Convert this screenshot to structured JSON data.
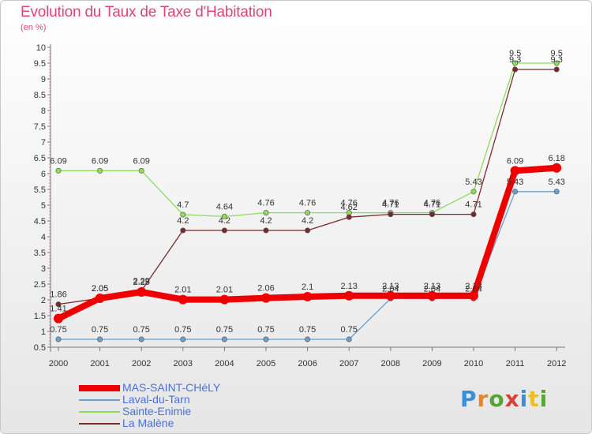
{
  "header": {
    "title": "Evolution du Taux de Taxe d'Habitation",
    "subtitle": "(en %)"
  },
  "logo": {
    "text": "Proxiti",
    "colors": [
      "#3a8fd8",
      "#e8832a",
      "#5aa33a",
      "#d8403a",
      "#3a8fd8",
      "#e8c12a",
      "#5aa33a"
    ]
  },
  "chart_data": {
    "type": "line",
    "title": "Evolution du Taux de Taxe d'Habitation",
    "subtitle": "(en %)",
    "xlabel": "",
    "ylabel": "",
    "x": [
      "2000",
      "2001",
      "2002",
      "2003",
      "2004",
      "2005",
      "2006",
      "2007",
      "2008",
      "2009",
      "2010",
      "2011",
      "2012"
    ],
    "ylim": [
      0.5,
      10
    ],
    "yticks": [
      "0.5",
      "1",
      "1.5",
      "2",
      "2.5",
      "3",
      "3.5",
      "4",
      "4.5",
      "5",
      "5.5",
      "6",
      "6.5",
      "7",
      "7.5",
      "8",
      "8.5",
      "9",
      "9.5",
      "10"
    ],
    "grid": false,
    "legend_position": "bottom-left",
    "series": [
      {
        "name": "MAS-SAINT-CHéLY",
        "color": "#ee0000",
        "emphasis": true,
        "values": [
          1.41,
          2.05,
          2.25,
          2.01,
          2.01,
          2.06,
          2.1,
          2.13,
          2.13,
          2.13,
          2.13,
          6.09,
          6.18
        ],
        "labels": [
          "1.41",
          "2.05",
          "2.25",
          "2.01",
          "2.01",
          "2.06",
          "2.1",
          "2.13",
          "2.13",
          "2.13",
          "2.13",
          "6.09",
          "6.18"
        ]
      },
      {
        "name": "Laval-du-Tarn",
        "color": "#6a9fd0",
        "values": [
          0.75,
          0.75,
          0.75,
          0.75,
          0.75,
          0.75,
          0.75,
          0.75,
          2.04,
          2.04,
          2.04,
          5.43,
          5.43
        ],
        "labels": [
          "0.75",
          "0.75",
          "0.75",
          "0.75",
          "0.75",
          "0.75",
          "0.75",
          "0.75",
          "2.04",
          "2.04",
          "2.04",
          "5.43",
          "5.43"
        ]
      },
      {
        "name": "Sainte-Enimie",
        "color": "#8edc5a",
        "values": [
          6.09,
          6.09,
          6.09,
          4.7,
          4.64,
          4.76,
          4.76,
          4.76,
          4.76,
          4.76,
          5.43,
          9.5,
          9.5
        ],
        "labels": [
          "6.09",
          "6.09",
          "6.09",
          "4.7",
          "4.64",
          "4.76",
          "4.76",
          "4.76",
          "4.76",
          "4.76",
          "5.43",
          "9.5",
          "9.5"
        ]
      },
      {
        "name": "La Malène",
        "color": "#7a2a2a",
        "values": [
          1.86,
          2.05,
          2.29,
          4.2,
          4.2,
          4.2,
          4.2,
          4.62,
          4.71,
          4.71,
          4.71,
          9.3,
          9.3
        ],
        "labels": [
          "1.86",
          "2.05",
          "2.29",
          "4.2",
          "4.2",
          "4.2",
          "4.2",
          "4.62",
          "4.71",
          "4.71",
          "4.71",
          "9.3",
          "9.3"
        ]
      }
    ]
  }
}
